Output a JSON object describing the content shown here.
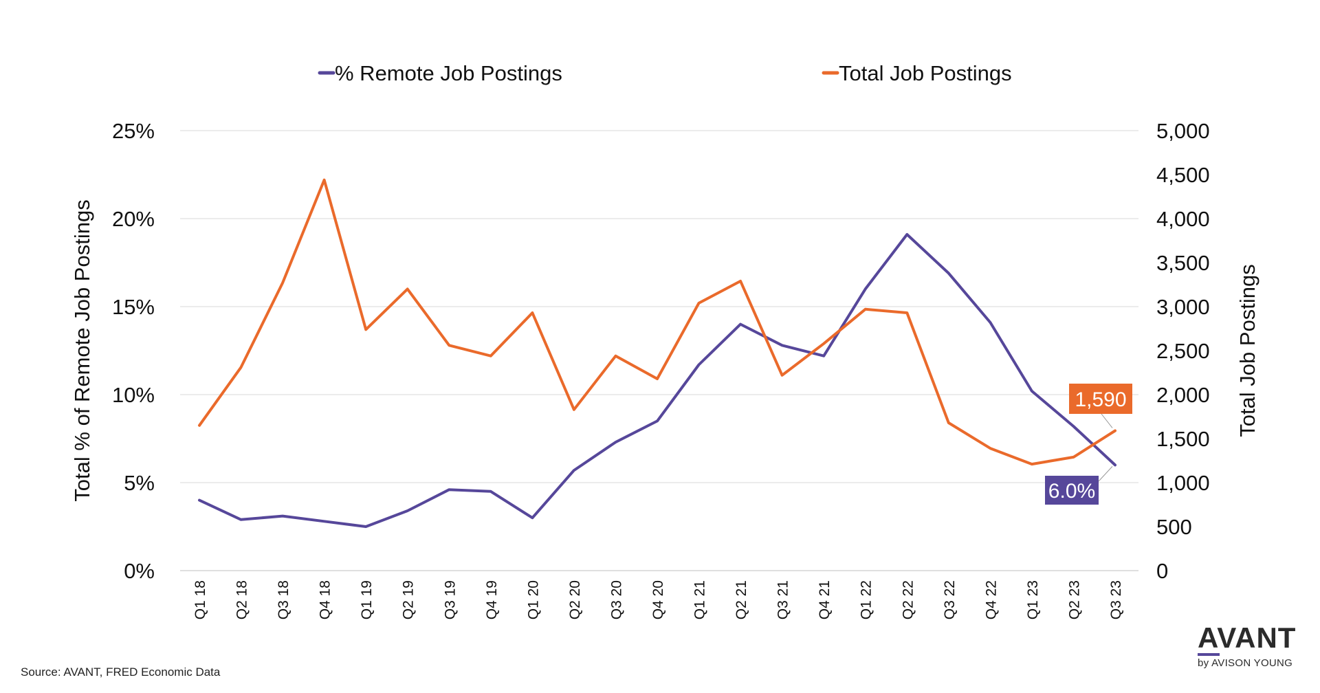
{
  "chart_data": {
    "type": "line",
    "categories": [
      "Q1 18",
      "Q2 18",
      "Q3 18",
      "Q4 18",
      "Q1 19",
      "Q2 19",
      "Q3 19",
      "Q4 19",
      "Q1 20",
      "Q2 20",
      "Q3 20",
      "Q4 20",
      "Q1 21",
      "Q2 21",
      "Q3 21",
      "Q4 21",
      "Q1 22",
      "Q2 22",
      "Q3 22",
      "Q4 22",
      "Q1 23",
      "Q2 23",
      "Q3 23"
    ],
    "series": [
      {
        "name": "% Remote Job Postings",
        "axis": "left",
        "color": "#56479a",
        "values": [
          4.0,
          2.9,
          3.1,
          2.8,
          2.5,
          3.4,
          4.6,
          4.5,
          3.0,
          5.7,
          7.3,
          8.5,
          11.7,
          14.0,
          12.8,
          12.2,
          16.0,
          19.1,
          16.9,
          14.1,
          10.2,
          8.2,
          6.0
        ]
      },
      {
        "name": "Total Job Postings",
        "axis": "right",
        "color": "#ea6a2b",
        "values": [
          1650,
          2310,
          3270,
          4440,
          2740,
          3200,
          2560,
          2440,
          2930,
          1830,
          2440,
          2180,
          3040,
          3290,
          2220,
          2580,
          2970,
          2930,
          1680,
          1390,
          1210,
          1290,
          1590
        ]
      }
    ],
    "ylabel_left": "Total % of Remote Job Postings",
    "ylabel_right": "Total Job Postings",
    "ylim_left": [
      0,
      25
    ],
    "ylim_right": [
      0,
      5000
    ],
    "yticks_left": [
      "0%",
      "5%",
      "10%",
      "15%",
      "20%",
      "25%"
    ],
    "yticks_right": [
      "0",
      "500",
      "1,000",
      "1,500",
      "2,000",
      "2,500",
      "3,000",
      "3,500",
      "4,000",
      "4,500",
      "5,000"
    ],
    "legend_position": "top",
    "grid": true,
    "annotations": [
      {
        "series": 1,
        "text": "1,590",
        "color": "#ea6a2b"
      },
      {
        "series": 0,
        "text": "6.0%",
        "color": "#56479a"
      }
    ]
  },
  "footer": {
    "source": "Source: AVANT, FRED Economic Data"
  },
  "logo": {
    "word": "AVANT",
    "sub": "by AVISON YOUNG"
  }
}
